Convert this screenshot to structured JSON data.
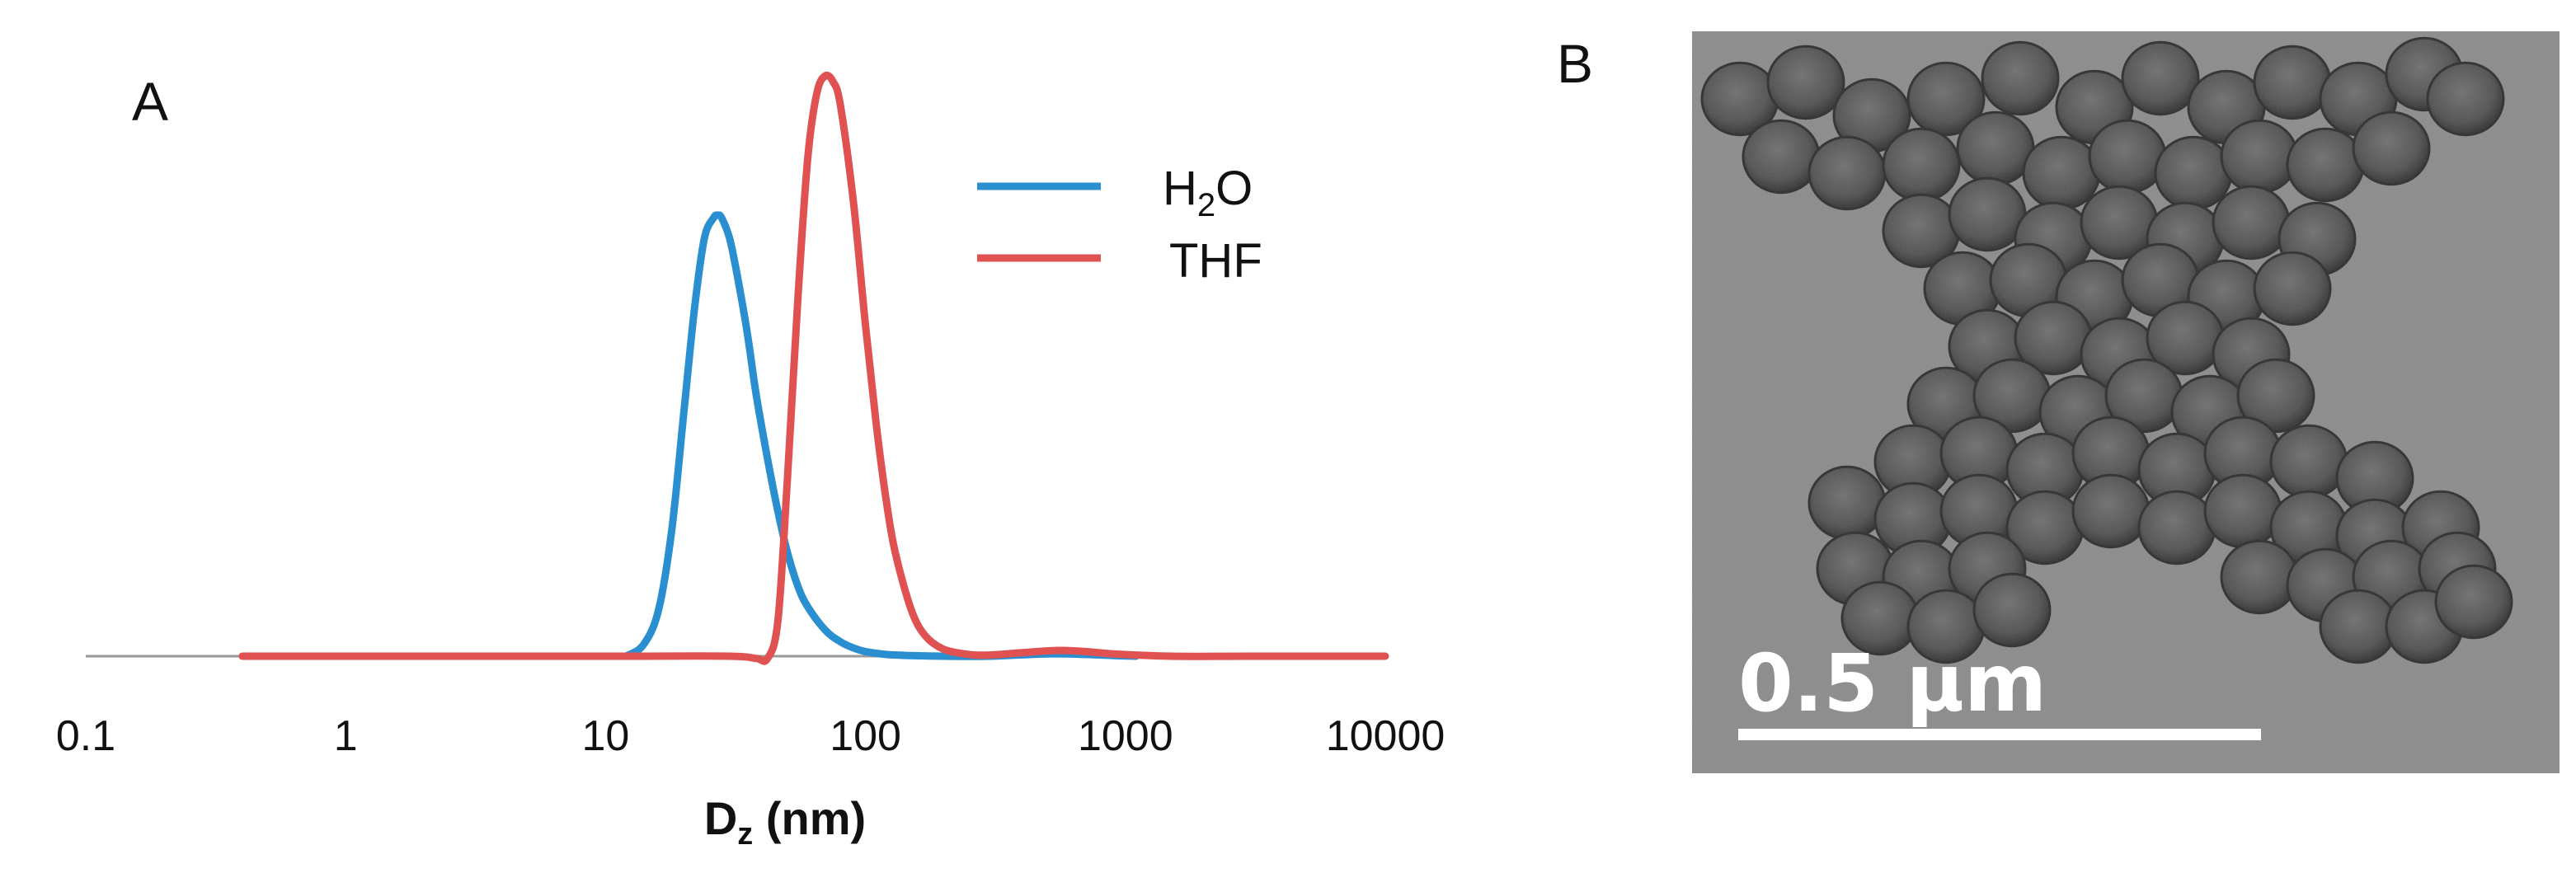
{
  "chart_data": {
    "type": "line",
    "panel_label": "A",
    "x_scale": "log",
    "xlim": [
      0.1,
      10000
    ],
    "ylim": [
      0,
      1
    ],
    "x_ticks": [
      0.1,
      1,
      10,
      100,
      1000,
      10000
    ],
    "x_tick_labels": [
      "0.1",
      "1",
      "10",
      "100",
      "1000",
      "10000"
    ],
    "xlabel": {
      "main": "D",
      "sub": "z",
      "rest": " (nm)"
    },
    "ylabel": "",
    "legend_placement": "top-right",
    "series": [
      {
        "name": "H2O",
        "legend": {
          "main": "H",
          "sub": "2",
          "rest": "O"
        },
        "color": "#2a8fd0",
        "x": [
          12,
          14,
          16,
          18,
          20,
          22,
          24,
          26,
          27,
          28,
          30,
          32,
          35,
          38,
          42,
          46,
          50,
          55,
          60,
          70,
          80,
          90,
          100,
          120,
          150,
          200,
          300,
          500,
          700,
          900,
          1100
        ],
        "y": [
          0,
          0.02,
          0.08,
          0.22,
          0.42,
          0.6,
          0.72,
          0.755,
          0.76,
          0.755,
          0.72,
          0.66,
          0.56,
          0.45,
          0.34,
          0.25,
          0.18,
          0.12,
          0.085,
          0.045,
          0.025,
          0.014,
          0.008,
          0.003,
          0.001,
          0,
          0,
          0.004,
          0.003,
          0.001,
          0
        ]
      },
      {
        "name": "THF",
        "legend": {
          "main": "THF",
          "sub": "",
          "rest": ""
        },
        "color": "#e05252",
        "x": [
          0.4,
          1,
          10,
          30,
          38,
          42,
          46,
          50,
          55,
          60,
          65,
          70,
          75,
          80,
          90,
          100,
          110,
          120,
          130,
          150,
          170,
          200,
          250,
          300,
          400,
          550,
          700,
          900,
          1500,
          3000,
          10000
        ],
        "y": [
          0,
          0,
          0,
          0,
          -0.004,
          -0.004,
          0.06,
          0.3,
          0.62,
          0.86,
          0.97,
          1.0,
          0.99,
          0.95,
          0.78,
          0.57,
          0.4,
          0.27,
          0.18,
          0.08,
          0.035,
          0.012,
          0.003,
          0.002,
          0.006,
          0.01,
          0.008,
          0.004,
          0,
          0,
          0
        ]
      }
    ]
  },
  "figure_b": {
    "panel_label": "B",
    "scale_bar_label": "0.5 µm"
  }
}
